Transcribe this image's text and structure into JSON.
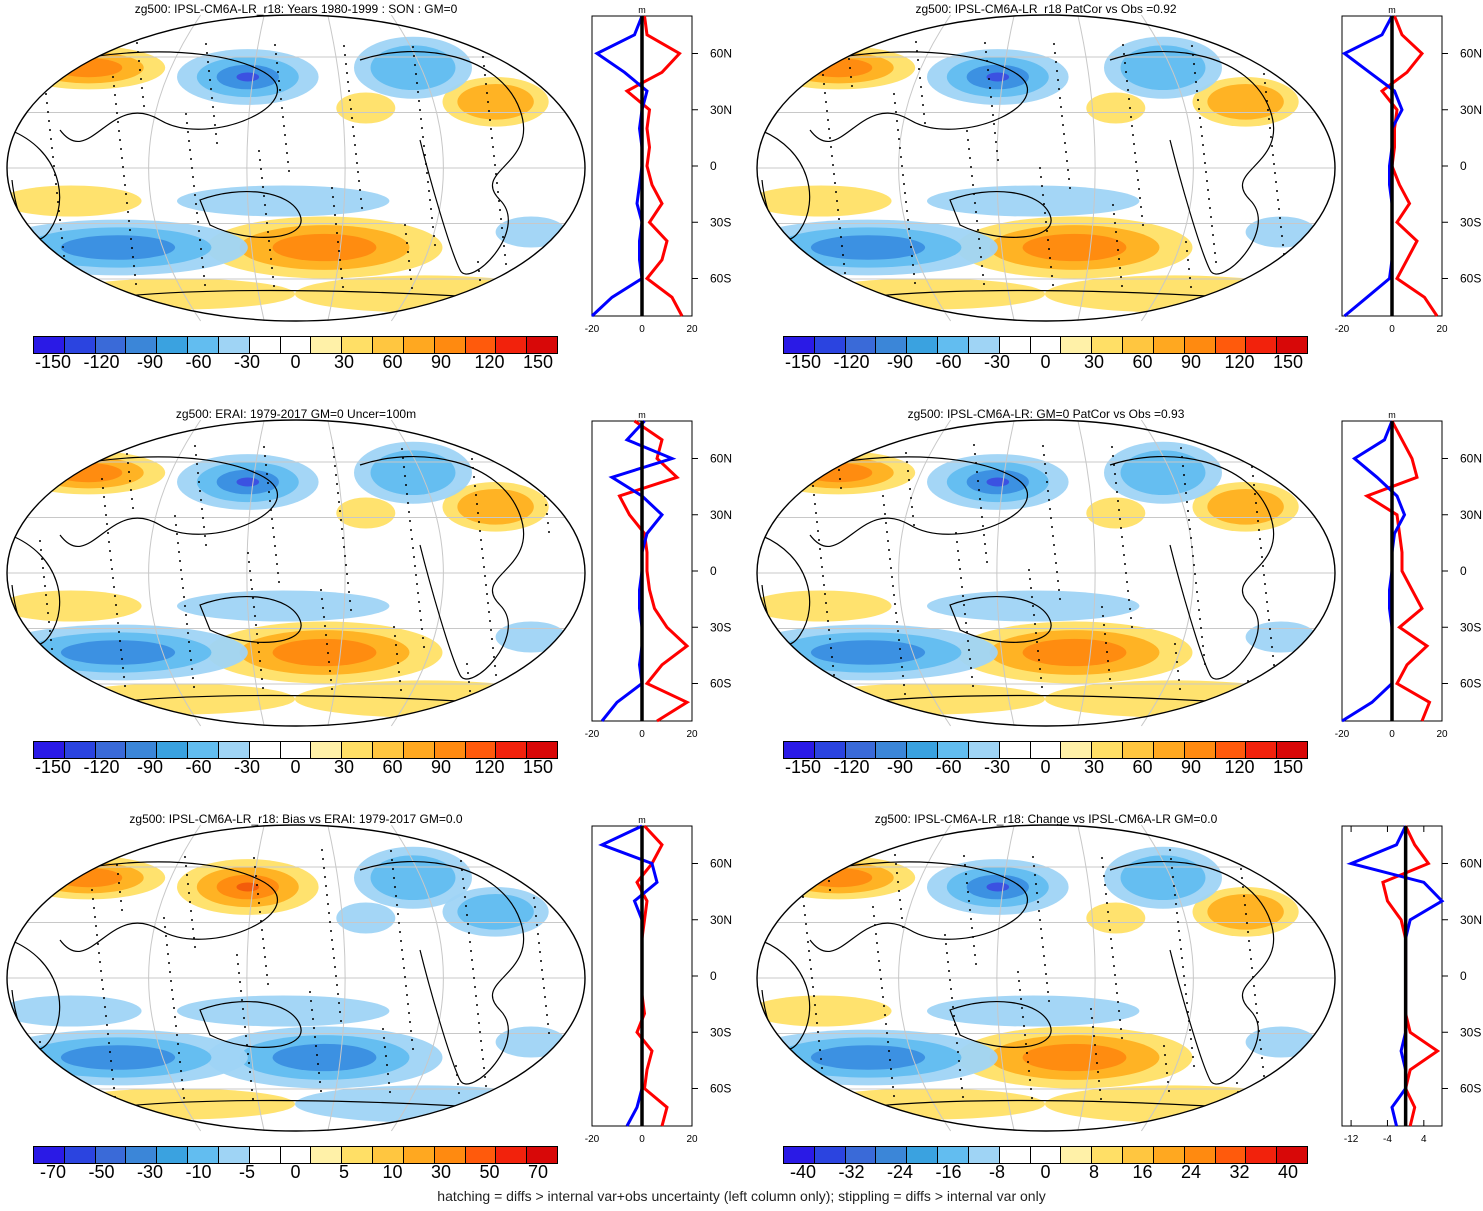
{
  "footer": "hatching = diffs > internal var+obs uncertainty (left column only); stippling = diffs > internal var only",
  "colors": {
    "red_series": "#ff0000",
    "blue_series": "#0000ff",
    "zero_line": "#000000"
  },
  "lat_tick_labels": [
    "60N",
    "30N",
    "0",
    "30S",
    "60S"
  ],
  "chart_data": [
    {
      "type": "heatmap",
      "title": "zg500: IPSL-CM6A-LR_r18: Years 1980-1999 : SON : GM=0",
      "colorbar_labels": [
        "-150",
        "-120",
        "-90",
        "-60",
        "-30",
        "0",
        "30",
        "60",
        "90",
        "120",
        "150"
      ],
      "profile": {
        "type": "line",
        "xlabel": "m",
        "xlim": [
          -20,
          20
        ],
        "xtick_labels": [
          "-20",
          "0",
          "20"
        ],
        "lat": [
          80,
          70,
          60,
          50,
          40,
          30,
          20,
          10,
          0,
          -10,
          -20,
          -30,
          -40,
          -50,
          -60,
          -70,
          -80
        ],
        "series": [
          {
            "name": "red",
            "values": [
              1,
              2,
              15,
              8,
              -6,
              3,
              2,
              3,
              2,
              4,
              8,
              3,
              10,
              8,
              2,
              12,
              16
            ]
          },
          {
            "name": "blue",
            "values": [
              0,
              -3,
              -18,
              -7,
              2,
              0,
              -1,
              0,
              0,
              -1,
              -2,
              0,
              -1,
              -1,
              0,
              -12,
              -20
            ]
          }
        ]
      }
    },
    {
      "type": "heatmap",
      "title": "zg500: IPSL-CM6A-LR_r18 PatCor vs Obs =0.92",
      "colorbar_labels": [
        "-150",
        "-120",
        "-90",
        "-60",
        "-30",
        "0",
        "30",
        "60",
        "90",
        "120",
        "150"
      ],
      "profile": {
        "type": "line",
        "xlabel": "m",
        "xlim": [
          -20,
          20
        ],
        "xtick_labels": [
          "-20",
          "0",
          "20"
        ],
        "lat": [
          80,
          70,
          60,
          50,
          40,
          30,
          20,
          10,
          0,
          -10,
          -20,
          -30,
          -40,
          -50,
          -60,
          -70,
          -80
        ],
        "series": [
          {
            "name": "red",
            "values": [
              1,
              4,
              12,
              6,
              -4,
              2,
              1,
              1,
              0,
              3,
              7,
              2,
              10,
              6,
              2,
              13,
              18
            ]
          },
          {
            "name": "blue",
            "values": [
              0,
              -4,
              -19,
              -9,
              1,
              4,
              0,
              0,
              -1,
              -1,
              0,
              0,
              0,
              0,
              -1,
              -10,
              -19
            ]
          }
        ]
      }
    },
    {
      "type": "heatmap",
      "title": "zg500: ERAI: 1979-2017 GM=0 Uncer=100m",
      "colorbar_labels": [
        "-150",
        "-120",
        "-90",
        "-60",
        "-30",
        "0",
        "30",
        "60",
        "90",
        "120",
        "150"
      ],
      "profile": {
        "type": "line",
        "xlabel": "m",
        "xlim": [
          -20,
          20
        ],
        "xtick_labels": [
          "-20",
          "0",
          "20"
        ],
        "lat": [
          80,
          70,
          60,
          50,
          40,
          30,
          20,
          10,
          0,
          -10,
          -20,
          -30,
          -40,
          -50,
          -60,
          -70,
          -80
        ],
        "series": [
          {
            "name": "red",
            "values": [
              -3,
              8,
              6,
              14,
              -9,
              -5,
              1,
              2,
              2,
              3,
              5,
              10,
              18,
              8,
              2,
              18,
              6
            ]
          },
          {
            "name": "blue",
            "values": [
              1,
              -6,
              12,
              -12,
              0,
              8,
              2,
              0,
              0,
              -1,
              -1,
              0,
              0,
              -1,
              0,
              -10,
              -16
            ]
          }
        ]
      }
    },
    {
      "type": "heatmap",
      "title": "zg500: IPSL-CM6A-LR: GM=0 PatCor vs Obs =0.93",
      "colorbar_labels": [
        "-150",
        "-120",
        "-90",
        "-60",
        "-30",
        "0",
        "30",
        "60",
        "90",
        "120",
        "150"
      ],
      "profile": {
        "type": "line",
        "xlabel": "m",
        "xlim": [
          -20,
          20
        ],
        "xtick_labels": [
          "-20",
          "0",
          "20"
        ],
        "lat": [
          80,
          70,
          60,
          50,
          40,
          30,
          20,
          10,
          0,
          -10,
          -20,
          -30,
          -40,
          -50,
          -60,
          -70,
          -80
        ],
        "series": [
          {
            "name": "red",
            "values": [
              0,
              4,
              8,
              10,
              -10,
              2,
              3,
              4,
              4,
              8,
              12,
              3,
              14,
              6,
              2,
              15,
              12
            ]
          },
          {
            "name": "blue",
            "values": [
              0,
              -3,
              -15,
              -6,
              2,
              5,
              1,
              0,
              0,
              -1,
              -1,
              0,
              0,
              0,
              0,
              -8,
              -20
            ]
          }
        ]
      }
    },
    {
      "type": "heatmap",
      "title": "zg500: IPSL-CM6A-LR_r18: Bias vs ERAI: 1979-2017  GM=0.0",
      "colorbar_labels": [
        "-70",
        "-50",
        "-30",
        "-10",
        "-5",
        "0",
        "5",
        "10",
        "30",
        "50",
        "70"
      ],
      "profile": {
        "type": "line",
        "xlabel": "m",
        "xlim": [
          -20,
          20
        ],
        "xtick_labels": [
          "-20",
          "0",
          "20"
        ],
        "lat": [
          80,
          70,
          60,
          50,
          40,
          30,
          20,
          10,
          0,
          -10,
          -20,
          -30,
          -40,
          -50,
          -60,
          -70,
          -80
        ],
        "series": [
          {
            "name": "red",
            "values": [
              1,
              8,
              4,
              -2,
              2,
              1,
              0,
              0,
              0,
              0,
              1,
              -2,
              4,
              2,
              1,
              10,
              8
            ]
          },
          {
            "name": "blue",
            "values": [
              0,
              -16,
              4,
              6,
              -3,
              0,
              0,
              0,
              0,
              0,
              0,
              0,
              0,
              0,
              0,
              -2,
              -6
            ]
          }
        ]
      }
    },
    {
      "type": "heatmap",
      "title": "zg500: IPSL-CM6A-LR_r18: Change vs IPSL-CM6A-LR GM=0.0",
      "colorbar_labels": [
        "-40",
        "-32",
        "-24",
        "-16",
        "-8",
        "0",
        "8",
        "16",
        "24",
        "32",
        "40"
      ],
      "profile": {
        "type": "line",
        "xlabel": "",
        "xlim": [
          -14,
          8
        ],
        "xtick_labels": [
          "-12",
          "-4",
          "4"
        ],
        "lat": [
          80,
          70,
          60,
          50,
          40,
          30,
          20,
          10,
          0,
          -10,
          -20,
          -30,
          -40,
          -50,
          -60,
          -70,
          -80
        ],
        "series": [
          {
            "name": "red",
            "values": [
              0,
              2,
              5,
              -5,
              -4,
              -1,
              0,
              0,
              0,
              0,
              0,
              1,
              7,
              1,
              0,
              2,
              1
            ]
          },
          {
            "name": "blue",
            "values": [
              0,
              -2,
              -12,
              4,
              8,
              1,
              0,
              0,
              0,
              0,
              0,
              0,
              -1,
              0,
              0,
              -3,
              -2
            ]
          }
        ]
      }
    }
  ]
}
